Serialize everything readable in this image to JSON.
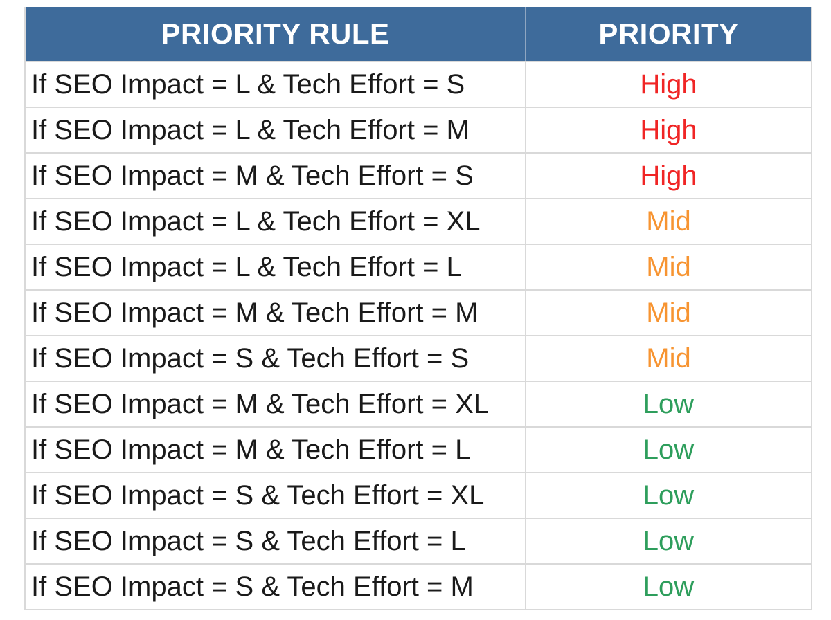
{
  "colors": {
    "header_bg": "#3E6B9B",
    "header_text": "#FFFFFF",
    "high": "#F02525",
    "mid": "#F79431",
    "low": "#2E9E5C",
    "border": "#D9D9D9",
    "rule_text": "#1A1A1A"
  },
  "chart_data": {
    "type": "table",
    "columns": [
      "PRIORITY RULE",
      "PRIORITY"
    ],
    "rows": [
      {
        "rule": "If SEO Impact = L & Tech Effort = S",
        "priority": "High",
        "color": "#F02525"
      },
      {
        "rule": "If SEO Impact = L & Tech Effort = M",
        "priority": "High",
        "color": "#F02525"
      },
      {
        "rule": "If SEO Impact = M & Tech Effort = S",
        "priority": "High",
        "color": "#F02525"
      },
      {
        "rule": "If SEO Impact = L & Tech Effort = XL",
        "priority": "Mid",
        "color": "#F79431"
      },
      {
        "rule": "If SEO Impact = L & Tech Effort = L",
        "priority": "Mid",
        "color": "#F79431"
      },
      {
        "rule": "If SEO Impact = M & Tech Effort = M",
        "priority": "Mid",
        "color": "#F79431"
      },
      {
        "rule": "If SEO Impact = S & Tech Effort = S",
        "priority": "Mid",
        "color": "#F79431"
      },
      {
        "rule": "If SEO Impact = M & Tech Effort = XL",
        "priority": "Low",
        "color": "#2E9E5C"
      },
      {
        "rule": "If SEO Impact = M & Tech Effort = L",
        "priority": "Low",
        "color": "#2E9E5C"
      },
      {
        "rule": "If SEO Impact = S & Tech Effort = XL",
        "priority": "Low",
        "color": "#2E9E5C"
      },
      {
        "rule": "If SEO Impact = S & Tech Effort = L",
        "priority": "Low",
        "color": "#2E9E5C"
      },
      {
        "rule": "If SEO Impact = S & Tech Effort = M",
        "priority": "Low",
        "color": "#2E9E5C"
      }
    ]
  }
}
